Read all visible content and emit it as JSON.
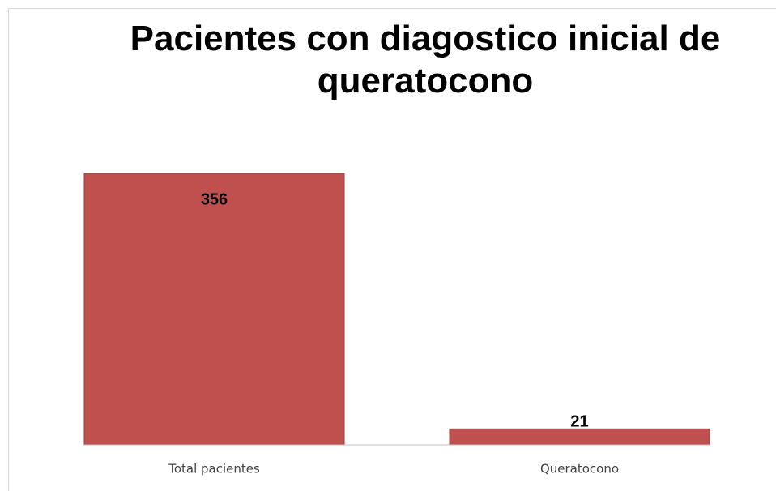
{
  "chart_data": {
    "type": "bar",
    "title": "Pacientes con diagostico inicial de queratocono",
    "categories": [
      "Total pacientes",
      "Queratocono"
    ],
    "values": [
      356,
      21
    ],
    "color": "#c0504d"
  }
}
